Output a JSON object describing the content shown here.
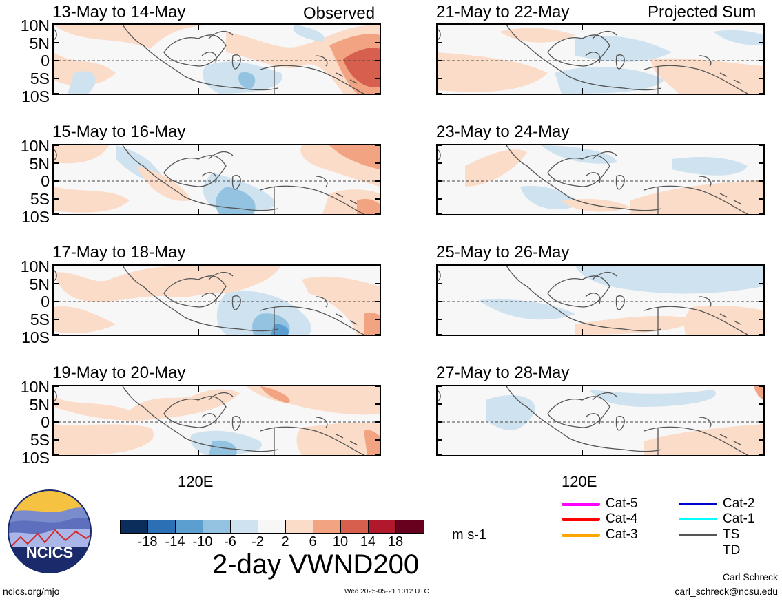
{
  "column_labels": {
    "left": "Observed",
    "right": "Projected Sum"
  },
  "panels_left": [
    {
      "title": "13-May to 14-May"
    },
    {
      "title": "15-May to 16-May"
    },
    {
      "title": "17-May to 18-May"
    },
    {
      "title": "19-May to 20-May"
    }
  ],
  "panels_right": [
    {
      "title": "21-May to 22-May"
    },
    {
      "title": "23-May to 24-May"
    },
    {
      "title": "25-May to 26-May"
    },
    {
      "title": "27-May to 28-May"
    }
  ],
  "lat_labels": [
    "10N",
    "5N",
    "0",
    "5S",
    "10S"
  ],
  "lon_label": "120E",
  "colorbar": {
    "colors": [
      "#0b2d5b",
      "#2b6fb4",
      "#5a9fd0",
      "#93c3e0",
      "#cfe2ef",
      "#f7f7f7",
      "#fbdcc9",
      "#f2a482",
      "#d6604d",
      "#b2182b",
      "#67001f"
    ],
    "ticks": [
      "-18",
      "-14",
      "-10",
      "-6",
      "-2",
      "2",
      "6",
      "10",
      "14",
      "18"
    ],
    "units": "m s-1",
    "title": "2-day VWND200"
  },
  "legend": [
    {
      "label": "Cat-5",
      "color": "#ff00ff"
    },
    {
      "label": "Cat-4",
      "color": "#ff0000"
    },
    {
      "label": "Cat-3",
      "color": "#ffa500"
    },
    {
      "label": "Cat-2",
      "color": "#0000cc"
    },
    {
      "label": "Cat-1",
      "color": "#00ffff"
    },
    {
      "label": "TS",
      "color": "#555555"
    },
    {
      "label": "TD",
      "color": "#aaaaaa"
    }
  ],
  "logo_text": "NCICS",
  "footer": {
    "url": "ncics.org/mjo",
    "timestamp": "Wed 2025-05-21 1012 UTC",
    "author": "Carl Schreck",
    "email": "carl_schreck@ncsu.edu"
  }
}
